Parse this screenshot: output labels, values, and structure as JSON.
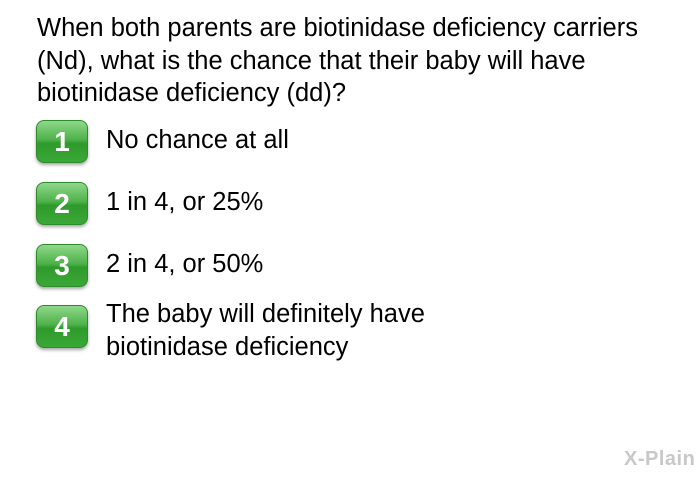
{
  "question": "When both parents are biotinidase deficiency carriers (Nd), what is the chance that their baby will have biotinidase deficiency (dd)?",
  "options": [
    {
      "number": "1",
      "label": "No chance at all"
    },
    {
      "number": "2",
      "label": "1 in 4, or 25%"
    },
    {
      "number": "3",
      "label": "2 in 4, or 50%"
    },
    {
      "number": "4",
      "label": "The baby will definitely have biotinidase deficiency"
    }
  ],
  "logo": "X-Plain",
  "colors": {
    "button": "#4fb24a",
    "logo": "#c8c8c8"
  }
}
